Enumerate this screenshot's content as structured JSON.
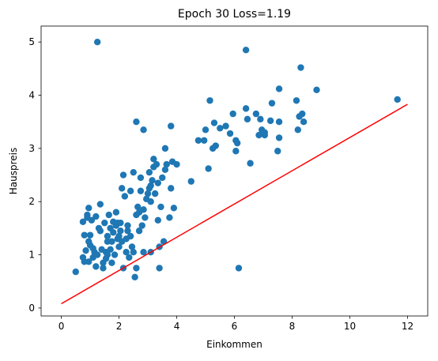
{
  "chart_data": {
    "type": "scatter",
    "title": "Epoch 30 Loss=1.19",
    "xlabel": "Einkommen",
    "ylabel": "Hauspreis",
    "xlim": [
      -0.7,
      12.7
    ],
    "ylim": [
      -0.15,
      5.3
    ],
    "xticks": [
      0,
      2,
      4,
      6,
      8,
      10,
      12
    ],
    "yticks": [
      0,
      1,
      2,
      3,
      4,
      5
    ],
    "grid": false,
    "colors": {
      "points": "#1f77b4",
      "line": "#ff0000",
      "axes": "#000000"
    },
    "series": [
      {
        "type": "scatter",
        "points": [
          [
            0.5,
            0.68
          ],
          [
            0.75,
            0.95
          ],
          [
            0.75,
            1.62
          ],
          [
            0.8,
            0.87
          ],
          [
            0.8,
            1.37
          ],
          [
            0.85,
            1.08
          ],
          [
            0.9,
            1.7
          ],
          [
            0.9,
            1.75
          ],
          [
            0.95,
            1.88
          ],
          [
            0.95,
            1.25
          ],
          [
            0.95,
            0.87
          ],
          [
            1.0,
            1.37
          ],
          [
            1.0,
            1.18
          ],
          [
            1.05,
            1.65
          ],
          [
            1.1,
            1.12
          ],
          [
            1.1,
            0.95
          ],
          [
            1.15,
            1.05
          ],
          [
            1.2,
            1.72
          ],
          [
            1.2,
            0.78
          ],
          [
            1.25,
            1.0
          ],
          [
            1.25,
            5.0
          ],
          [
            1.3,
            1.5
          ],
          [
            1.35,
            1.95
          ],
          [
            1.35,
            1.45
          ],
          [
            1.4,
            1.1
          ],
          [
            1.45,
            0.85
          ],
          [
            1.45,
            0.75
          ],
          [
            1.5,
            1.6
          ],
          [
            1.55,
            1.05
          ],
          [
            1.55,
            0.93
          ],
          [
            1.6,
            1.35
          ],
          [
            1.6,
            1.25
          ],
          [
            1.6,
            1.0
          ],
          [
            1.65,
            1.75
          ],
          [
            1.7,
            1.5
          ],
          [
            1.7,
            1.1
          ],
          [
            1.75,
            1.25
          ],
          [
            1.75,
            0.85
          ],
          [
            1.8,
            1.42
          ],
          [
            1.8,
            1.62
          ],
          [
            1.85,
            1.0
          ],
          [
            1.9,
            1.55
          ],
          [
            1.9,
            1.8
          ],
          [
            1.95,
            1.6
          ],
          [
            1.95,
            1.3
          ],
          [
            2.0,
            1.15
          ],
          [
            2.0,
            1.35
          ],
          [
            2.05,
            1.45
          ],
          [
            2.05,
            1.6
          ],
          [
            2.1,
            1.25
          ],
          [
            2.1,
            2.25
          ],
          [
            2.15,
            2.5
          ],
          [
            2.15,
            0.75
          ],
          [
            2.2,
            2.1
          ],
          [
            2.25,
            1.3
          ],
          [
            2.25,
            1.05
          ],
          [
            2.3,
            1.55
          ],
          [
            2.3,
            1.45
          ],
          [
            2.35,
            0.95
          ],
          [
            2.4,
            1.35
          ],
          [
            2.4,
            2.2
          ],
          [
            2.45,
            1.15
          ],
          [
            2.5,
            1.05
          ],
          [
            2.5,
            2.55
          ],
          [
            2.55,
            0.58
          ],
          [
            2.6,
            0.75
          ],
          [
            2.6,
            1.75
          ],
          [
            2.6,
            3.5
          ],
          [
            2.65,
            1.9
          ],
          [
            2.7,
            1.45
          ],
          [
            2.7,
            1.8
          ],
          [
            2.75,
            2.2
          ],
          [
            2.75,
            2.45
          ],
          [
            2.8,
            1.55
          ],
          [
            2.85,
            1.05
          ],
          [
            2.85,
            1.85
          ],
          [
            2.85,
            3.35
          ],
          [
            2.9,
            1.7
          ],
          [
            2.95,
            2.05
          ],
          [
            3.0,
            2.15
          ],
          [
            3.05,
            2.25
          ],
          [
            3.05,
            2.55
          ],
          [
            3.1,
            2.0
          ],
          [
            3.1,
            1.05
          ],
          [
            3.1,
            2.3
          ],
          [
            3.15,
            2.4
          ],
          [
            3.2,
            2.65
          ],
          [
            3.2,
            2.8
          ],
          [
            3.25,
            2.15
          ],
          [
            3.3,
            2.7
          ],
          [
            3.35,
            1.65
          ],
          [
            3.35,
            2.35
          ],
          [
            3.4,
            0.75
          ],
          [
            3.4,
            1.15
          ],
          [
            3.45,
            1.9
          ],
          [
            3.5,
            2.45
          ],
          [
            3.55,
            1.25
          ],
          [
            3.6,
            2.6
          ],
          [
            3.6,
            3.0
          ],
          [
            3.65,
            2.7
          ],
          [
            3.75,
            1.7
          ],
          [
            3.8,
            2.25
          ],
          [
            3.8,
            3.42
          ],
          [
            3.85,
            2.75
          ],
          [
            3.9,
            1.88
          ],
          [
            4.0,
            2.7
          ],
          [
            4.5,
            2.38
          ],
          [
            4.75,
            3.15
          ],
          [
            4.95,
            3.15
          ],
          [
            5.0,
            3.35
          ],
          [
            5.1,
            2.62
          ],
          [
            5.15,
            3.9
          ],
          [
            5.25,
            3.0
          ],
          [
            5.3,
            3.48
          ],
          [
            5.35,
            3.05
          ],
          [
            5.5,
            3.38
          ],
          [
            5.7,
            3.42
          ],
          [
            5.85,
            3.28
          ],
          [
            5.95,
            3.65
          ],
          [
            6.05,
            3.15
          ],
          [
            6.05,
            2.95
          ],
          [
            6.1,
            3.1
          ],
          [
            6.15,
            0.75
          ],
          [
            6.4,
            3.75
          ],
          [
            6.4,
            4.85
          ],
          [
            6.45,
            3.55
          ],
          [
            6.55,
            2.72
          ],
          [
            6.75,
            3.65
          ],
          [
            6.85,
            3.25
          ],
          [
            6.9,
            3.55
          ],
          [
            6.95,
            3.35
          ],
          [
            7.05,
            3.25
          ],
          [
            7.05,
            3.3
          ],
          [
            7.25,
            3.52
          ],
          [
            7.3,
            3.85
          ],
          [
            7.5,
            2.95
          ],
          [
            7.55,
            3.2
          ],
          [
            7.55,
            4.12
          ],
          [
            7.55,
            3.5
          ],
          [
            8.15,
            3.9
          ],
          [
            8.2,
            3.35
          ],
          [
            8.25,
            3.6
          ],
          [
            8.3,
            4.52
          ],
          [
            8.35,
            3.65
          ],
          [
            8.4,
            3.5
          ],
          [
            8.85,
            4.1
          ],
          [
            11.65,
            3.92
          ]
        ]
      },
      {
        "type": "line",
        "points": [
          [
            0,
            0.08
          ],
          [
            12,
            3.83
          ]
        ]
      }
    ]
  }
}
